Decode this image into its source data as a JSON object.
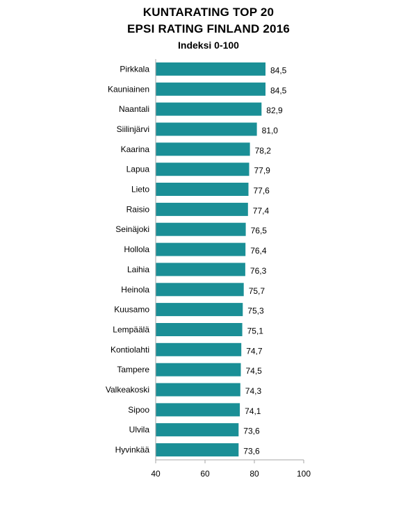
{
  "chart_data": {
    "type": "bar",
    "orientation": "horizontal",
    "title_lines": [
      "KUNTARATING TOP 20",
      "EPSI RATING FINLAND 2016"
    ],
    "subtitle": "Indeksi 0-100",
    "categories": [
      "Pirkkala",
      "Kauniainen",
      "Naantali",
      "Siilinjärvi",
      "Kaarina",
      "Lapua",
      "Lieto",
      "Raisio",
      "Seinäjoki",
      "Hollola",
      "Laihia",
      "Heinola",
      "Kuusamo",
      "Lempäälä",
      "Kontiolahti",
      "Tampere",
      "Valkeakoski",
      "Sipoo",
      "Ulvila",
      "Hyvinkää"
    ],
    "values": [
      84.5,
      84.5,
      82.9,
      81.0,
      78.2,
      77.9,
      77.6,
      77.4,
      76.5,
      76.4,
      76.3,
      75.7,
      75.3,
      75.1,
      74.7,
      74.5,
      74.3,
      74.1,
      73.6,
      73.6
    ],
    "value_labels": [
      "84,5",
      "84,5",
      "82,9",
      "81,0",
      "78,2",
      "77,9",
      "77,6",
      "77,4",
      "76,5",
      "76,4",
      "76,3",
      "75,7",
      "75,3",
      "75,1",
      "74,7",
      "74,5",
      "74,3",
      "74,1",
      "73,6",
      "73,6"
    ],
    "xlim": [
      40,
      100
    ],
    "x_ticks": [
      "40",
      "60",
      "80",
      "100"
    ],
    "grid": false,
    "bar_color": "#1a8f96",
    "axis_color": "#a6a6a6"
  }
}
